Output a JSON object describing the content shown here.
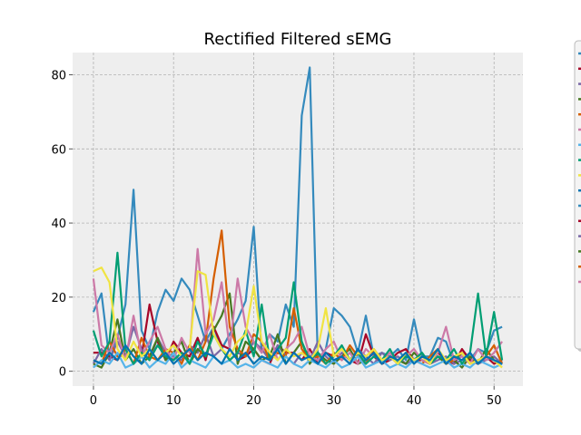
{
  "chart_data": {
    "type": "line",
    "title": "Rectified Filtered sEMG",
    "xlabel": "",
    "ylabel": "",
    "xlim": [
      -2.6,
      53.6
    ],
    "ylim": [
      -4,
      86
    ],
    "x_ticks": [
      0,
      10,
      20,
      30,
      40,
      50
    ],
    "y_ticks": [
      0,
      20,
      40,
      60,
      80
    ],
    "grid": true,
    "legend": "right, outside, entries clipped",
    "colors": [
      "#348ABD",
      "#A60628",
      "#7A68A6",
      "#467821",
      "#D55E00",
      "#CC79A7",
      "#56B4E9",
      "#009E73",
      "#F0E442",
      "#0072B2"
    ],
    "series": [
      {
        "values": [
          16,
          21,
          3,
          9,
          18,
          49,
          11,
          6,
          16,
          22,
          19,
          25,
          22,
          15,
          8,
          12,
          6,
          10,
          14,
          19,
          39,
          5,
          10,
          8,
          18,
          12,
          69,
          82,
          3,
          6,
          17,
          15,
          12,
          5,
          15,
          4,
          5,
          4,
          6,
          3,
          14,
          4,
          4,
          9,
          8,
          2,
          5,
          3,
          6,
          5,
          11,
          12
        ]
      },
      {
        "values": [
          5,
          5,
          4,
          3,
          6,
          2,
          4,
          18,
          8,
          3,
          8,
          5,
          4,
          9,
          3,
          12,
          7,
          6,
          3,
          4,
          6,
          3,
          2,
          7,
          5,
          5,
          3,
          6,
          2,
          5,
          4,
          6,
          3,
          2,
          10,
          4,
          2,
          3,
          5,
          6,
          3,
          3,
          2,
          5,
          3,
          2,
          6,
          3,
          2,
          4,
          2,
          3
        ]
      },
      {
        "values": [
          2,
          6,
          3,
          8,
          4,
          12,
          6,
          3,
          9,
          5,
          4,
          3,
          7,
          5,
          10,
          4,
          6,
          3,
          5,
          4,
          8,
          6,
          3,
          7,
          4,
          2,
          5,
          3,
          8,
          4,
          2,
          5,
          3,
          6,
          4,
          2,
          5,
          3,
          4,
          2,
          3,
          5,
          2,
          3,
          4,
          2,
          3,
          5,
          2,
          3,
          4,
          2
        ]
      },
      {
        "values": [
          2,
          1,
          5,
          14,
          3,
          6,
          2,
          4,
          9,
          3,
          5,
          8,
          2,
          6,
          4,
          11,
          15,
          21,
          2,
          8,
          6,
          3,
          4,
          10,
          2,
          5,
          8,
          2,
          5,
          3,
          2,
          4,
          6,
          2,
          3,
          5,
          2,
          4,
          3,
          2,
          5,
          3,
          2,
          4,
          2,
          3,
          1,
          4,
          2,
          6,
          3,
          2
        ]
      },
      {
        "values": [
          3,
          2,
          8,
          4,
          6,
          2,
          9,
          4,
          3,
          6,
          5,
          2,
          7,
          3,
          8,
          25,
          38,
          12,
          6,
          4,
          10,
          8,
          3,
          5,
          4,
          17,
          6,
          3,
          4,
          2,
          5,
          3,
          7,
          4,
          2,
          6,
          3,
          4,
          2,
          5,
          3,
          2,
          4,
          6,
          2,
          3,
          5,
          2,
          3,
          4,
          7,
          2
        ]
      },
      {
        "values": [
          25,
          7,
          5,
          10,
          3,
          15,
          4,
          8,
          12,
          6,
          3,
          9,
          5,
          33,
          10,
          14,
          24,
          6,
          25,
          12,
          8,
          5,
          10,
          3,
          6,
          8,
          12,
          4,
          3,
          6,
          8,
          3,
          5,
          2,
          6,
          4,
          3,
          5,
          2,
          4,
          6,
          3,
          2,
          5,
          12,
          3,
          4,
          2,
          6,
          3,
          5,
          8
        ]
      },
      {
        "values": [
          1,
          3,
          2,
          5,
          1,
          2,
          4,
          1,
          3,
          2,
          5,
          1,
          3,
          2,
          1,
          4,
          2,
          3,
          1,
          2,
          1,
          3,
          2,
          1,
          4,
          2,
          1,
          3,
          2,
          1,
          3,
          1,
          2,
          4,
          1,
          2,
          3,
          1,
          2,
          1,
          3,
          2,
          1,
          2,
          3,
          1,
          2,
          1,
          3,
          2,
          1,
          2
        ]
      },
      {
        "values": [
          11,
          4,
          8,
          32,
          6,
          2,
          5,
          3,
          7,
          4,
          3,
          5,
          2,
          8,
          4,
          10,
          6,
          3,
          5,
          11,
          4,
          18,
          3,
          6,
          9,
          24,
          8,
          3,
          5,
          2,
          4,
          7,
          3,
          5,
          2,
          4,
          3,
          6,
          2,
          4,
          3,
          5,
          2,
          4,
          3,
          6,
          2,
          5,
          21,
          4,
          16,
          3
        ]
      },
      {
        "values": [
          27,
          28,
          24,
          6,
          3,
          8,
          4,
          6,
          3,
          5,
          7,
          4,
          6,
          27,
          26,
          10,
          6,
          4,
          8,
          10,
          23,
          8,
          5,
          3,
          6,
          4,
          5,
          3,
          6,
          17,
          4,
          6,
          3,
          5,
          4,
          6,
          3,
          4,
          2,
          5,
          3,
          4,
          2,
          6,
          3,
          4,
          5,
          2,
          3,
          4,
          3,
          1
        ]
      },
      {
        "values": [
          3,
          2,
          5,
          3,
          7,
          4,
          2,
          6,
          3,
          5,
          2,
          4,
          6,
          3,
          5,
          4,
          2,
          6,
          3,
          5,
          2,
          4,
          3,
          6,
          2,
          5,
          3,
          4,
          2,
          5,
          3,
          4,
          2,
          6,
          3,
          5,
          2,
          4,
          3,
          5,
          2,
          4,
          3,
          6,
          2,
          4,
          3,
          5,
          2,
          4,
          3,
          2
        ]
      }
    ]
  }
}
